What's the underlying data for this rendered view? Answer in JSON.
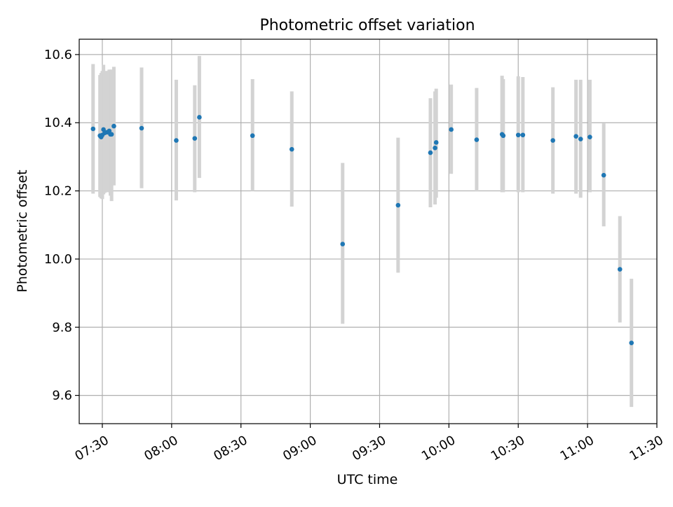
{
  "chart_data": {
    "type": "scatter",
    "title": "Photometric offset variation",
    "xlabel": "UTC time",
    "ylabel": "Photometric offset",
    "x_is_time": true,
    "xlim": [
      "07:20",
      "11:30"
    ],
    "ylim": [
      9.517,
      10.645
    ],
    "xticks": [
      "07:30",
      "08:00",
      "08:30",
      "09:00",
      "09:30",
      "10:00",
      "10:30",
      "11:00",
      "11:30"
    ],
    "yticks": [
      9.6,
      9.8,
      10.0,
      10.2,
      10.4,
      10.6
    ],
    "ytick_labels": [
      "9.6",
      "9.8",
      "10.0",
      "10.2",
      "10.4",
      "10.6"
    ],
    "grid": true,
    "colors": {
      "point": "#1f77b4",
      "errorbar": "#d3d3d3",
      "grid": "#b0b0b0"
    },
    "points": [
      {
        "t": "07:26",
        "y": 10.382,
        "lo": 10.192,
        "hi": 10.572
      },
      {
        "t": "07:29",
        "y": 10.362,
        "lo": 10.182,
        "hi": 10.54
      },
      {
        "t": "07:29.5",
        "y": 10.358,
        "lo": 10.178,
        "hi": 10.546
      },
      {
        "t": "07:30",
        "y": 10.364,
        "lo": 10.176,
        "hi": 10.552
      },
      {
        "t": "07:30.5",
        "y": 10.38,
        "lo": 10.19,
        "hi": 10.57
      },
      {
        "t": "07:31",
        "y": 10.37,
        "lo": 10.194,
        "hi": 10.546
      },
      {
        "t": "07:32",
        "y": 10.372,
        "lo": 10.196,
        "hi": 10.552
      },
      {
        "t": "07:33",
        "y": 10.376,
        "lo": 10.196,
        "hi": 10.556
      },
      {
        "t": "07:33.5",
        "y": 10.366,
        "lo": 10.186,
        "hi": 10.556
      },
      {
        "t": "07:34",
        "y": 10.366,
        "lo": 10.17,
        "hi": 10.556
      },
      {
        "t": "07:35",
        "y": 10.39,
        "lo": 10.216,
        "hi": 10.564
      },
      {
        "t": "07:47",
        "y": 10.384,
        "lo": 10.208,
        "hi": 10.562
      },
      {
        "t": "08:02",
        "y": 10.348,
        "lo": 10.172,
        "hi": 10.526
      },
      {
        "t": "08:10",
        "y": 10.354,
        "lo": 10.196,
        "hi": 10.51
      },
      {
        "t": "08:12",
        "y": 10.416,
        "lo": 10.238,
        "hi": 10.596
      },
      {
        "t": "08:35",
        "y": 10.362,
        "lo": 10.2,
        "hi": 10.528
      },
      {
        "t": "08:52",
        "y": 10.322,
        "lo": 10.154,
        "hi": 10.492
      },
      {
        "t": "09:14",
        "y": 10.044,
        "lo": 9.81,
        "hi": 10.282
      },
      {
        "t": "09:38",
        "y": 10.158,
        "lo": 9.96,
        "hi": 10.356
      },
      {
        "t": "09:52",
        "y": 10.312,
        "lo": 10.152,
        "hi": 10.472
      },
      {
        "t": "09:54",
        "y": 10.326,
        "lo": 10.16,
        "hi": 10.492
      },
      {
        "t": "09:54.5",
        "y": 10.342,
        "lo": 10.18,
        "hi": 10.5
      },
      {
        "t": "10:01",
        "y": 10.38,
        "lo": 10.25,
        "hi": 10.512
      },
      {
        "t": "10:12",
        "y": 10.35,
        "lo": 10.198,
        "hi": 10.502
      },
      {
        "t": "10:23",
        "y": 10.366,
        "lo": 10.196,
        "hi": 10.538
      },
      {
        "t": "10:23.5",
        "y": 10.362,
        "lo": 10.196,
        "hi": 10.528
      },
      {
        "t": "10:30",
        "y": 10.364,
        "lo": 10.196,
        "hi": 10.536
      },
      {
        "t": "10:32",
        "y": 10.364,
        "lo": 10.196,
        "hi": 10.534
      },
      {
        "t": "10:45",
        "y": 10.348,
        "lo": 10.192,
        "hi": 10.504
      },
      {
        "t": "10:55",
        "y": 10.36,
        "lo": 10.192,
        "hi": 10.526
      },
      {
        "t": "10:57",
        "y": 10.352,
        "lo": 10.18,
        "hi": 10.526
      },
      {
        "t": "11:01",
        "y": 10.358,
        "lo": 10.196,
        "hi": 10.526
      },
      {
        "t": "11:07",
        "y": 10.246,
        "lo": 10.096,
        "hi": 10.398
      },
      {
        "t": "11:14",
        "y": 9.97,
        "lo": 9.814,
        "hi": 10.126
      },
      {
        "t": "11:19",
        "y": 9.754,
        "lo": 9.566,
        "hi": 9.942
      }
    ]
  }
}
